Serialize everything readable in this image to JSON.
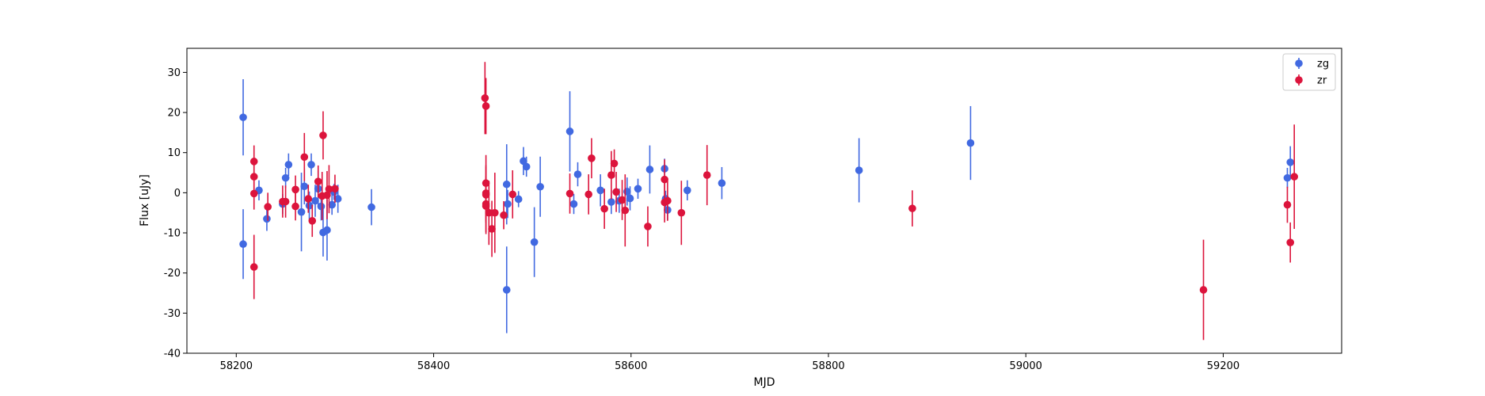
{
  "chart_data": {
    "type": "scatter",
    "title": "",
    "xlabel": "MJD",
    "ylabel": "Flux [uJy]",
    "xlim": [
      58150,
      59320
    ],
    "ylim": [
      -40,
      36
    ],
    "xticks": [
      58200,
      58400,
      58600,
      58800,
      59000,
      59200
    ],
    "yticks": [
      -40,
      -30,
      -20,
      -10,
      0,
      10,
      20,
      30
    ],
    "grid": false,
    "legend_position": "top-right",
    "series": [
      {
        "name": "zg",
        "color": "#4169e1",
        "points": [
          {
            "x": 58207,
            "y": 18.8,
            "err": 9.5
          },
          {
            "x": 58207,
            "y": -12.8,
            "err": 8.7
          },
          {
            "x": 58223,
            "y": 0.6,
            "err": 2.5
          },
          {
            "x": 58231,
            "y": -6.5,
            "err": 3.0
          },
          {
            "x": 58247,
            "y": -2.8,
            "err": 2.5
          },
          {
            "x": 58250,
            "y": 3.7,
            "err": 2.5
          },
          {
            "x": 58253,
            "y": 7.0,
            "err": 2.8
          },
          {
            "x": 58266,
            "y": -4.8,
            "err": 9.8
          },
          {
            "x": 58269,
            "y": 1.6,
            "err": 4.5
          },
          {
            "x": 58274,
            "y": -3.2,
            "err": 3.5
          },
          {
            "x": 58276,
            "y": 7.0,
            "err": 2.8
          },
          {
            "x": 58280,
            "y": -2.0,
            "err": 4.0
          },
          {
            "x": 58283,
            "y": 1.0,
            "err": 4.5
          },
          {
            "x": 58286,
            "y": -3.4,
            "err": 3.5
          },
          {
            "x": 58288,
            "y": -9.9,
            "err": 6.0
          },
          {
            "x": 58292,
            "y": -9.3,
            "err": 7.6
          },
          {
            "x": 58297,
            "y": -3.0,
            "err": 2.5
          },
          {
            "x": 58299,
            "y": 0.2,
            "err": 2.0
          },
          {
            "x": 58303,
            "y": -1.5,
            "err": 3.5
          },
          {
            "x": 58337,
            "y": -3.6,
            "err": 4.5
          },
          {
            "x": 58474,
            "y": 2.1,
            "err": 10.0
          },
          {
            "x": 58474,
            "y": -24.2,
            "err": 10.8
          },
          {
            "x": 58475,
            "y": -2.8,
            "err": 3.5
          },
          {
            "x": 58486,
            "y": -1.6,
            "err": 2.0
          },
          {
            "x": 58491,
            "y": 7.9,
            "err": 3.5
          },
          {
            "x": 58494,
            "y": 6.5,
            "err": 2.5
          },
          {
            "x": 58502,
            "y": -12.3,
            "err": 8.7
          },
          {
            "x": 58508,
            "y": 1.5,
            "err": 7.5
          },
          {
            "x": 58538,
            "y": 15.3,
            "err": 10.0
          },
          {
            "x": 58542,
            "y": -2.8,
            "err": 2.5
          },
          {
            "x": 58546,
            "y": 4.6,
            "err": 3.0
          },
          {
            "x": 58569,
            "y": 0.6,
            "err": 4.0
          },
          {
            "x": 58580,
            "y": -2.3,
            "err": 3.0
          },
          {
            "x": 58588,
            "y": -2.0,
            "err": 3.0
          },
          {
            "x": 58596,
            "y": 0.3,
            "err": 3.5
          },
          {
            "x": 58599,
            "y": -1.4,
            "err": 3.0
          },
          {
            "x": 58607,
            "y": 1.0,
            "err": 2.5
          },
          {
            "x": 58619,
            "y": 5.8,
            "err": 6.0
          },
          {
            "x": 58634,
            "y": 6.0,
            "err": 2.5
          },
          {
            "x": 58635,
            "y": -1.5,
            "err": 2.0
          },
          {
            "x": 58637,
            "y": -4.3,
            "err": 2.5
          },
          {
            "x": 58657,
            "y": 0.6,
            "err": 2.5
          },
          {
            "x": 58692,
            "y": 2.4,
            "err": 4.0
          },
          {
            "x": 58831,
            "y": 5.6,
            "err": 8.0
          },
          {
            "x": 58944,
            "y": 12.4,
            "err": 9.2
          },
          {
            "x": 59265,
            "y": 3.7,
            "err": 2.5
          },
          {
            "x": 59268,
            "y": 7.6,
            "err": 4.0
          }
        ]
      },
      {
        "name": "zr",
        "color": "#dc143c",
        "points": [
          {
            "x": 58218,
            "y": 7.8,
            "err": 4.0
          },
          {
            "x": 58218,
            "y": 4.0,
            "err": 4.0
          },
          {
            "x": 58218,
            "y": -0.2,
            "err": 4.0
          },
          {
            "x": 58218,
            "y": -18.5,
            "err": 8.0
          },
          {
            "x": 58232,
            "y": -3.5,
            "err": 3.5
          },
          {
            "x": 58247,
            "y": -2.2,
            "err": 4.0
          },
          {
            "x": 58250,
            "y": -2.2,
            "err": 4.0
          },
          {
            "x": 58260,
            "y": 0.8,
            "err": 3.5
          },
          {
            "x": 58260,
            "y": -3.4,
            "err": 3.5
          },
          {
            "x": 58269,
            "y": 8.9,
            "err": 6.0
          },
          {
            "x": 58273,
            "y": -1.5,
            "err": 3.5
          },
          {
            "x": 58277,
            "y": -7.0,
            "err": 4.0
          },
          {
            "x": 58283,
            "y": 2.8,
            "err": 4.0
          },
          {
            "x": 58288,
            "y": 14.3,
            "err": 6.0
          },
          {
            "x": 58287,
            "y": -0.8,
            "err": 6.0
          },
          {
            "x": 58292,
            "y": -0.6,
            "err": 6.0
          },
          {
            "x": 58294,
            "y": 0.9,
            "err": 6.0
          },
          {
            "x": 58300,
            "y": 1.0,
            "err": 3.5
          },
          {
            "x": 58452,
            "y": 23.6,
            "err": 9.0
          },
          {
            "x": 58453,
            "y": 21.6,
            "err": 7.0
          },
          {
            "x": 58453,
            "y": 2.4,
            "err": 7.0
          },
          {
            "x": 58453,
            "y": -0.1,
            "err": 7.0
          },
          {
            "x": 58453,
            "y": -0.5,
            "err": 7.0
          },
          {
            "x": 58453,
            "y": -2.8,
            "err": 7.0
          },
          {
            "x": 58453,
            "y": -3.3,
            "err": 7.0
          },
          {
            "x": 58456,
            "y": -5.0,
            "err": 8.0
          },
          {
            "x": 58459,
            "y": -9.0,
            "err": 7.0
          },
          {
            "x": 58462,
            "y": -5.0,
            "err": 10.0
          },
          {
            "x": 58471,
            "y": -5.6,
            "err": 3.5
          },
          {
            "x": 58480,
            "y": -0.4,
            "err": 6.0
          },
          {
            "x": 58538,
            "y": -0.2,
            "err": 5.0
          },
          {
            "x": 58557,
            "y": -0.4,
            "err": 5.0
          },
          {
            "x": 58560,
            "y": 8.6,
            "err": 5.0
          },
          {
            "x": 58573,
            "y": -4.0,
            "err": 5.0
          },
          {
            "x": 58580,
            "y": 4.4,
            "err": 6.0
          },
          {
            "x": 58583,
            "y": 7.3,
            "err": 3.5
          },
          {
            "x": 58585,
            "y": 0.2,
            "err": 5.0
          },
          {
            "x": 58591,
            "y": -1.8,
            "err": 5.0
          },
          {
            "x": 58594,
            "y": -4.4,
            "err": 9.0
          },
          {
            "x": 58617,
            "y": -8.4,
            "err": 5.0
          },
          {
            "x": 58634,
            "y": 3.3,
            "err": 5.0
          },
          {
            "x": 58634,
            "y": -2.4,
            "err": 5.0
          },
          {
            "x": 58637,
            "y": -2.0,
            "err": 5.0
          },
          {
            "x": 58651,
            "y": -5.0,
            "err": 8.0
          },
          {
            "x": 58677,
            "y": 4.4,
            "err": 7.5
          },
          {
            "x": 58885,
            "y": -3.9,
            "err": 4.5
          },
          {
            "x": 59180,
            "y": -24.2,
            "err": 12.5
          },
          {
            "x": 59265,
            "y": -3.0,
            "err": 4.5
          },
          {
            "x": 59268,
            "y": -12.4,
            "err": 5.0
          },
          {
            "x": 59272,
            "y": 4.0,
            "err": 13.0
          }
        ]
      }
    ]
  }
}
